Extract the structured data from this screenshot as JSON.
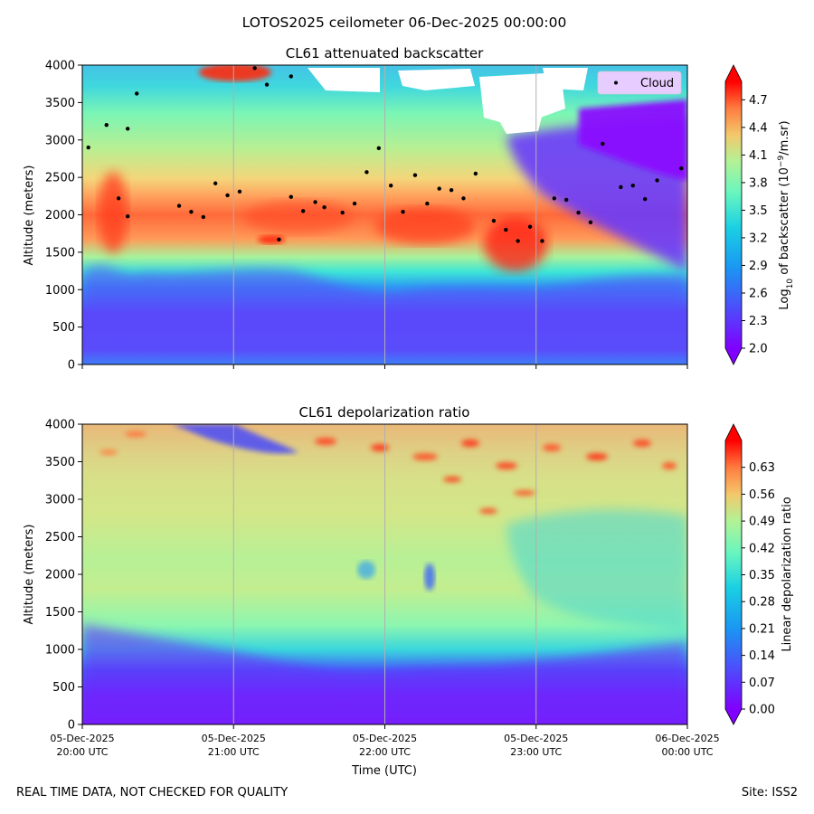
{
  "suptitle": "LOTOS2025 ceilometer 06-Dec-2025 00:00:00",
  "footer_left": "REAL TIME DATA, NOT CHECKED FOR QUALITY",
  "footer_right": "Site: ISS2",
  "chart_data": [
    {
      "type": "heatmap",
      "title": "CL61 attenuated backscatter",
      "ylabel": "Altitude (meters)",
      "ylim": [
        0,
        4000
      ],
      "yticks": [
        0,
        500,
        1000,
        1500,
        2000,
        2500,
        3000,
        3500,
        4000
      ],
      "colorbar": {
        "label_main": "Log",
        "label_sub": "10",
        "label_rest": " of backscatter (10",
        "label_exp": "−9",
        "label_end": "/m.sr)",
        "range": [
          2.0,
          4.9
        ],
        "ticks": [
          "2.0",
          "2.3",
          "2.6",
          "2.9",
          "3.2",
          "3.5",
          "3.8",
          "4.1",
          "4.4",
          "4.7"
        ]
      },
      "legend": {
        "label": "Cloud",
        "position": "top-right"
      },
      "cloud_base_points": [
        [
          0.01,
          2900
        ],
        [
          0.04,
          3200
        ],
        [
          0.06,
          2220
        ],
        [
          0.075,
          3150
        ],
        [
          0.075,
          1980
        ],
        [
          0.09,
          3620
        ],
        [
          0.16,
          2120
        ],
        [
          0.18,
          2040
        ],
        [
          0.2,
          1970
        ],
        [
          0.22,
          2420
        ],
        [
          0.24,
          2260
        ],
        [
          0.26,
          2310
        ],
        [
          0.285,
          3960
        ],
        [
          0.305,
          3740
        ],
        [
          0.325,
          1670
        ],
        [
          0.345,
          3850
        ],
        [
          0.345,
          2240
        ],
        [
          0.365,
          2050
        ],
        [
          0.385,
          2170
        ],
        [
          0.4,
          2100
        ],
        [
          0.43,
          2030
        ],
        [
          0.45,
          2150
        ],
        [
          0.47,
          2570
        ],
        [
          0.49,
          2890
        ],
        [
          0.51,
          2390
        ],
        [
          0.53,
          2040
        ],
        [
          0.55,
          2530
        ],
        [
          0.57,
          2150
        ],
        [
          0.59,
          2350
        ],
        [
          0.61,
          2330
        ],
        [
          0.63,
          2220
        ],
        [
          0.65,
          2550
        ],
        [
          0.68,
          1920
        ],
        [
          0.7,
          1800
        ],
        [
          0.72,
          1650
        ],
        [
          0.74,
          1840
        ],
        [
          0.76,
          1650
        ],
        [
          0.78,
          2220
        ],
        [
          0.8,
          2200
        ],
        [
          0.82,
          2030
        ],
        [
          0.84,
          1900
        ],
        [
          0.86,
          2950
        ],
        [
          0.89,
          2370
        ],
        [
          0.91,
          2390
        ],
        [
          0.93,
          2210
        ],
        [
          0.95,
          2460
        ],
        [
          0.99,
          2620
        ]
      ]
    },
    {
      "type": "heatmap",
      "title": "CL61 depolarization ratio",
      "ylabel": "Altitude (meters)",
      "xlabel": "Time (UTC)",
      "ylim": [
        0,
        4000
      ],
      "yticks": [
        0,
        500,
        1000,
        1500,
        2000,
        2500,
        3000,
        3500,
        4000
      ],
      "xticks": [
        {
          "date": "05-Dec-2025",
          "time": "20:00 UTC"
        },
        {
          "date": "05-Dec-2025",
          "time": "21:00 UTC"
        },
        {
          "date": "05-Dec-2025",
          "time": "22:00 UTC"
        },
        {
          "date": "05-Dec-2025",
          "time": "23:00 UTC"
        },
        {
          "date": "06-Dec-2025",
          "time": "00:00 UTC"
        }
      ],
      "colorbar": {
        "label": "Linear depolarization ratio",
        "range": [
          0.0,
          0.7
        ],
        "ticks": [
          "0.00",
          "0.07",
          "0.14",
          "0.21",
          "0.28",
          "0.35",
          "0.42",
          "0.49",
          "0.56",
          "0.63"
        ]
      }
    }
  ]
}
